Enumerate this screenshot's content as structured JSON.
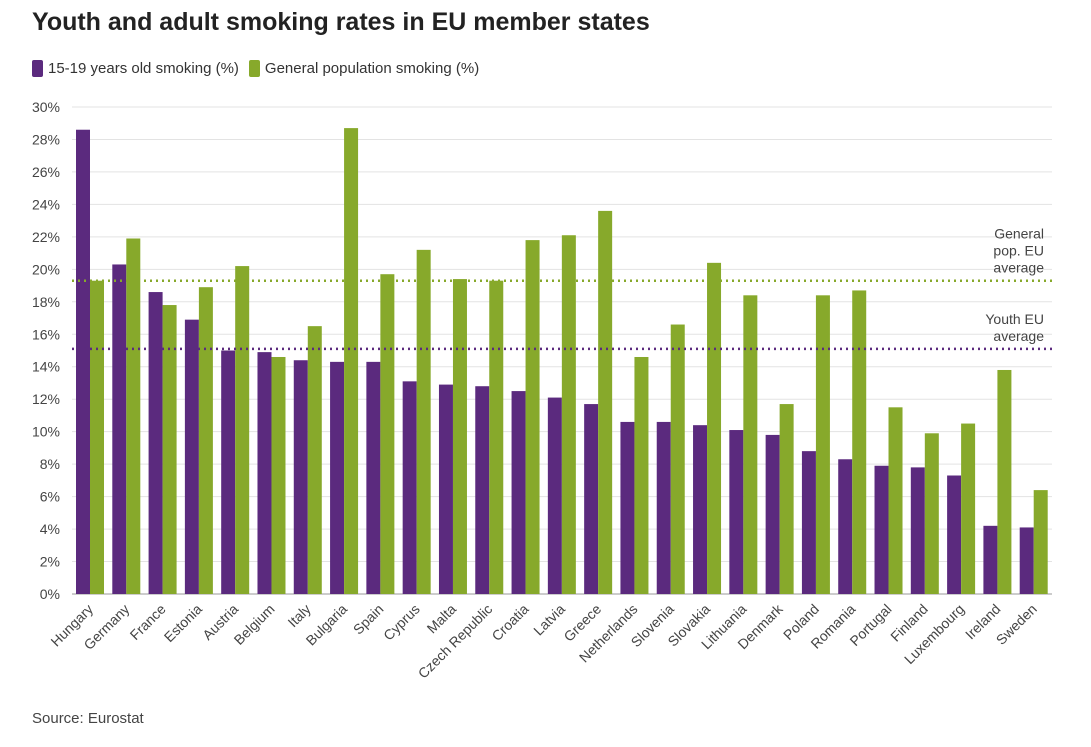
{
  "title": "Youth and adult smoking rates in EU member states",
  "source": "Source: Eurostat",
  "colors": {
    "youth": "#5b2a7e",
    "general": "#87a92b"
  },
  "chart_data": {
    "type": "bar",
    "title": "Youth and adult smoking rates in EU member states",
    "categories": [
      "Hungary",
      "Germany",
      "France",
      "Estonia",
      "Austria",
      "Belgium",
      "Italy",
      "Bulgaria",
      "Spain",
      "Cyprus",
      "Malta",
      "Czech Republic",
      "Croatia",
      "Latvia",
      "Greece",
      "Netherlands",
      "Slovenia",
      "Slovakia",
      "Lithuania",
      "Denmark",
      "Poland",
      "Romania",
      "Portugal",
      "Finland",
      "Luxembourg",
      "Ireland",
      "Sweden"
    ],
    "series": [
      {
        "name": "15-19 years old smoking (%)",
        "values": [
          28.6,
          20.3,
          18.6,
          16.9,
          15.0,
          14.9,
          14.4,
          14.3,
          14.3,
          13.1,
          12.9,
          12.8,
          12.5,
          12.1,
          11.7,
          10.6,
          10.6,
          10.4,
          10.1,
          9.8,
          8.8,
          8.3,
          7.9,
          7.8,
          7.3,
          4.2,
          4.1
        ]
      },
      {
        "name": "General population smoking (%)",
        "values": [
          19.3,
          21.9,
          17.8,
          18.9,
          20.2,
          14.6,
          16.5,
          28.7,
          19.7,
          21.2,
          19.4,
          19.3,
          21.8,
          22.1,
          23.6,
          14.6,
          16.6,
          20.4,
          18.4,
          11.7,
          18.4,
          18.7,
          11.5,
          9.9,
          10.5,
          13.8,
          6.4
        ]
      }
    ],
    "reference_lines": [
      {
        "label_lines": [
          "General",
          "pop. EU",
          "average"
        ],
        "value": 19.3,
        "series": "general"
      },
      {
        "label_lines": [
          "Youth EU",
          "average"
        ],
        "value": 15.1,
        "series": "youth"
      }
    ],
    "ylim": [
      0,
      30
    ],
    "yticks": [
      "0%",
      "2%",
      "4%",
      "6%",
      "8%",
      "10%",
      "12%",
      "14%",
      "16%",
      "18%",
      "20%",
      "22%",
      "24%",
      "26%",
      "28%",
      "30%"
    ],
    "grid": true,
    "legend": "top-left"
  }
}
